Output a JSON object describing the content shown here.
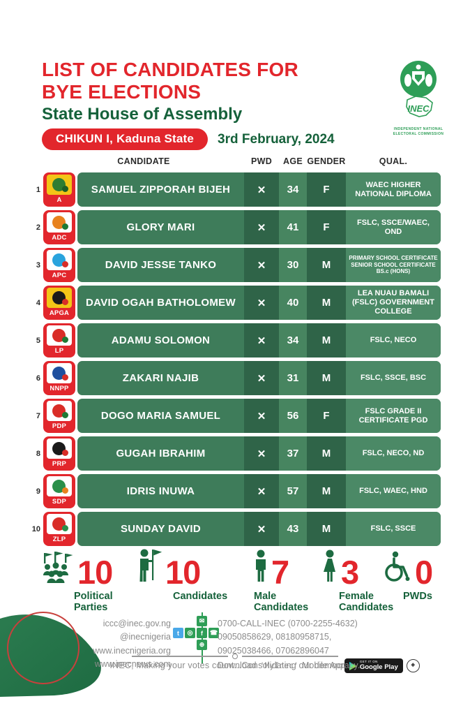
{
  "header": {
    "title_line1": "LIST OF CANDIDATES FOR",
    "title_line2": "BYE ELECTIONS",
    "subtitle": "State House of Assembly",
    "location_badge": "CHIKUN I, Kaduna State",
    "date": "3rd February, 2024",
    "logo": {
      "acronym": "INEC",
      "caption_line1": "INDEPENDENT NATIONAL",
      "caption_line2": "ELECTORAL COMMISSION"
    }
  },
  "colors": {
    "red": "#E2262C",
    "dark_green": "#15613A",
    "row_green": "#3E7C5A",
    "cell_dark": "#2F6448",
    "cell_light": "#4B8966",
    "logo_green": "#2E9E57",
    "footer_gray": "#8C8C8C"
  },
  "table": {
    "columns": {
      "candidate": "CANDIDATE",
      "pwd": "PWD",
      "age": "AGE",
      "gender": "GENDER",
      "qual": "QUAL."
    },
    "rows": [
      {
        "num": "1",
        "party": "A",
        "name": "SAMUEL ZIPPORAH BIJEH",
        "pwd": "✕",
        "age": "34",
        "gender": "F",
        "qual": "WAEC HIGHER NATIONAL DIPLOMA",
        "tile": "#F3C517",
        "mark": "#2E7D32",
        "mark2": "#1E5F26"
      },
      {
        "num": "2",
        "party": "ADC",
        "name": "GLORY MARI",
        "pwd": "✕",
        "age": "41",
        "gender": "F",
        "qual": "FSLC, SSCE/WAEC, OND",
        "tile": "#FFFFFF",
        "mark": "#E8821E",
        "mark2": "#1E7A34"
      },
      {
        "num": "3",
        "party": "APC",
        "name": "DAVID JESSE TANKO",
        "pwd": "✕",
        "age": "30",
        "gender": "M",
        "qual": "PRIMARY SCHOOL CERTIFICATE SENIOR SCHOOL CERTIFICATE BS.c (HONS)",
        "tile": "#FFFFFF",
        "mark": "#29A3DD",
        "mark2": "#D92D27"
      },
      {
        "num": "4",
        "party": "APGA",
        "name": "DAVID OGAH BATHOLOMEW",
        "pwd": "✕",
        "age": "40",
        "gender": "M",
        "qual": "LEA NUAU BAMALI (FSLC) GOVERNMENT COLLEGE",
        "tile": "#F3C517",
        "mark": "#1A1A1A",
        "mark2": "#D92D27"
      },
      {
        "num": "5",
        "party": "LP",
        "name": "ADAMU SOLOMON",
        "pwd": "✕",
        "age": "34",
        "gender": "M",
        "qual": "FSLC, NECO",
        "tile": "#FFFFFF",
        "mark": "#D92D27",
        "mark2": "#1E7A34"
      },
      {
        "num": "6",
        "party": "NNPP",
        "name": "ZAKARI NAJIB",
        "pwd": "✕",
        "age": "31",
        "gender": "M",
        "qual": "FSLC, SSCE, BSC",
        "tile": "#FFFFFF",
        "mark": "#1F4F9E",
        "mark2": "#D92D27"
      },
      {
        "num": "7",
        "party": "PDP",
        "name": "DOGO MARIA SAMUEL",
        "pwd": "✕",
        "age": "56",
        "gender": "F",
        "qual": "FSLC GRADE II CERTIFICATE PGD",
        "tile": "#FFFFFF",
        "mark": "#D92D27",
        "mark2": "#1E7A34"
      },
      {
        "num": "8",
        "party": "PRP",
        "name": "GUGAH IBRAHIM",
        "pwd": "✕",
        "age": "37",
        "gender": "M",
        "qual": "FSLC, NECO, ND",
        "tile": "#FFFFFF",
        "mark": "#1A1A1A",
        "mark2": "#D92D27"
      },
      {
        "num": "9",
        "party": "SDP",
        "name": "IDRIS INUWA",
        "pwd": "✕",
        "age": "57",
        "gender": "M",
        "qual": "FSLC, WAEC, HND",
        "tile": "#FFFFFF",
        "mark": "#2A8F4A",
        "mark2": "#E8821E"
      },
      {
        "num": "10",
        "party": "ZLP",
        "name": "SUNDAY DAVID",
        "pwd": "✕",
        "age": "43",
        "gender": "M",
        "qual": "FSLC, SSCE",
        "tile": "#FFFFFF",
        "mark": "#D92D27",
        "mark2": "#2A8F4A"
      }
    ]
  },
  "stats": [
    {
      "icon": "political-parties-icon",
      "value": "10",
      "label": "Political Parties"
    },
    {
      "icon": "candidates-flag-icon",
      "value": "10",
      "label": "Candidates"
    },
    {
      "icon": "male-icon",
      "value": "7",
      "label": "Male Candidates"
    },
    {
      "icon": "female-icon",
      "value": "3",
      "label": "Female Candidates"
    },
    {
      "icon": "wheelchair-icon",
      "value": "0",
      "label": "PWDs"
    }
  ],
  "footer": {
    "links": [
      "iccc@inec.gov.ng",
      "@inecnigeria",
      "www.inecnigeria.org",
      "www.inecnews.com"
    ],
    "social_icons": [
      "mail-icon",
      "twitter-icon",
      "instagram-icon",
      "facebook-icon",
      "phone-icon",
      "globe-icon"
    ],
    "phone_lines": [
      "0700-CALL-INEC (0700-2255-4632)",
      "09050858629, 08180958715,",
      "09025038466, 07062896047"
    ],
    "download": {
      "prefix": "Download",
      "app": "'MyInec'",
      "suffix": "Mobile App"
    },
    "play_badge": {
      "line1": "GET IT ON",
      "line2": "Google Play"
    },
    "tagline": "INEC, Making your votes count...Consolidating our democracy."
  }
}
